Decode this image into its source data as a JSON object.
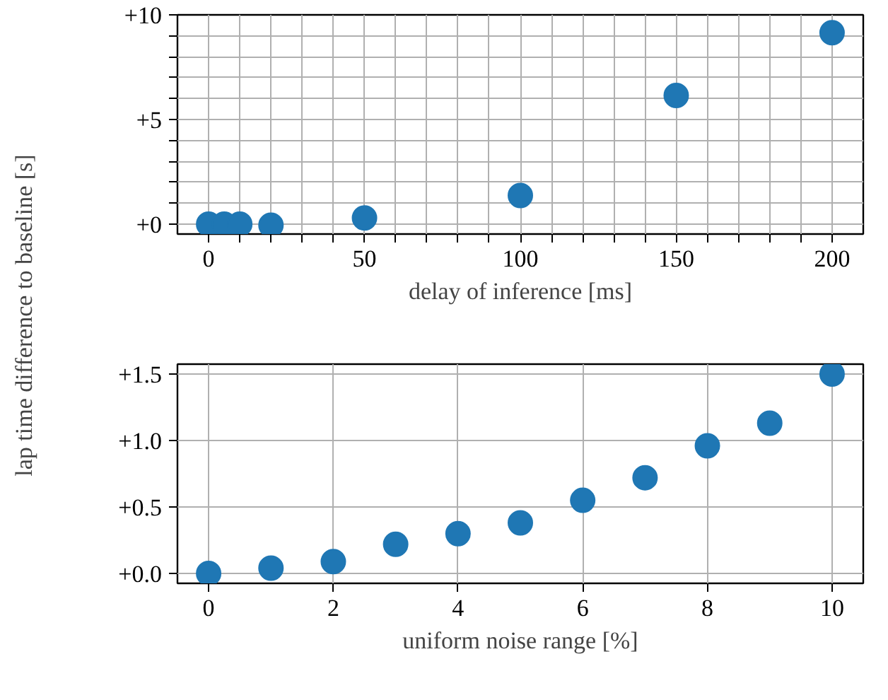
{
  "chart_data": [
    {
      "type": "scatter",
      "xlabel": "delay of inference [ms]",
      "ylabel": "lap time difference to baseline [s]",
      "x": [
        0,
        5,
        10,
        20,
        50,
        100,
        150,
        200
      ],
      "series": [
        {
          "color": "#1f77b4",
          "values": [
            0.0,
            0.0,
            0.0,
            -0.05,
            0.3,
            1.37,
            6.15,
            9.15
          ]
        }
      ],
      "xlim": [
        -10,
        210
      ],
      "ylim": [
        -0.47,
        10.0
      ],
      "xticks": [
        0,
        {
          "value": 10,
          "label": null
        },
        {
          "value": 20,
          "label": null
        },
        {
          "value": 30,
          "label": null
        },
        {
          "value": 40,
          "label": null
        },
        50,
        {
          "value": 60,
          "label": null
        },
        {
          "value": 70,
          "label": null
        },
        {
          "value": 80,
          "label": null
        },
        {
          "value": 90,
          "label": null
        },
        100,
        {
          "value": 110,
          "label": null
        },
        {
          "value": 120,
          "label": null
        },
        {
          "value": 130,
          "label": null
        },
        {
          "value": 140,
          "label": null
        },
        150,
        {
          "value": 160,
          "label": null
        },
        {
          "value": 170,
          "label": null
        },
        {
          "value": 180,
          "label": null
        },
        {
          "value": 190,
          "label": null
        },
        200
      ],
      "yticks": [
        {
          "value": 0,
          "label": "+0"
        },
        {
          "value": 1,
          "label": null
        },
        {
          "value": 2,
          "label": null
        },
        {
          "value": 3,
          "label": null
        },
        {
          "value": 4,
          "label": null
        },
        {
          "value": 5,
          "label": "+5"
        },
        {
          "value": 6,
          "label": null
        },
        {
          "value": 7,
          "label": null
        },
        {
          "value": 8,
          "label": null
        },
        {
          "value": 9,
          "label": null
        },
        {
          "value": 10,
          "label": "+10"
        }
      ],
      "grid": true,
      "marker": "circle"
    },
    {
      "type": "scatter",
      "xlabel": "uniform noise range [%]",
      "x": [
        0,
        1,
        2,
        3,
        4,
        5,
        6,
        7,
        8,
        9,
        10
      ],
      "series": [
        {
          "color": "#1f77b4",
          "values": [
            0.0,
            0.04,
            0.09,
            0.22,
            0.3,
            0.38,
            0.55,
            0.72,
            0.96,
            1.13,
            1.5
          ]
        }
      ],
      "xlim": [
        -0.5,
        10.5
      ],
      "ylim": [
        -0.074,
        1.574
      ],
      "xticks": [
        0,
        2,
        4,
        6,
        8,
        10
      ],
      "yticks": [
        {
          "value": 0,
          "label": "+0.0"
        },
        {
          "value": 0.5,
          "label": "+0.5"
        },
        {
          "value": 1.0,
          "label": "+1.0"
        },
        {
          "value": 1.5,
          "label": "+1.5"
        }
      ],
      "grid": true,
      "marker": "circle"
    }
  ]
}
